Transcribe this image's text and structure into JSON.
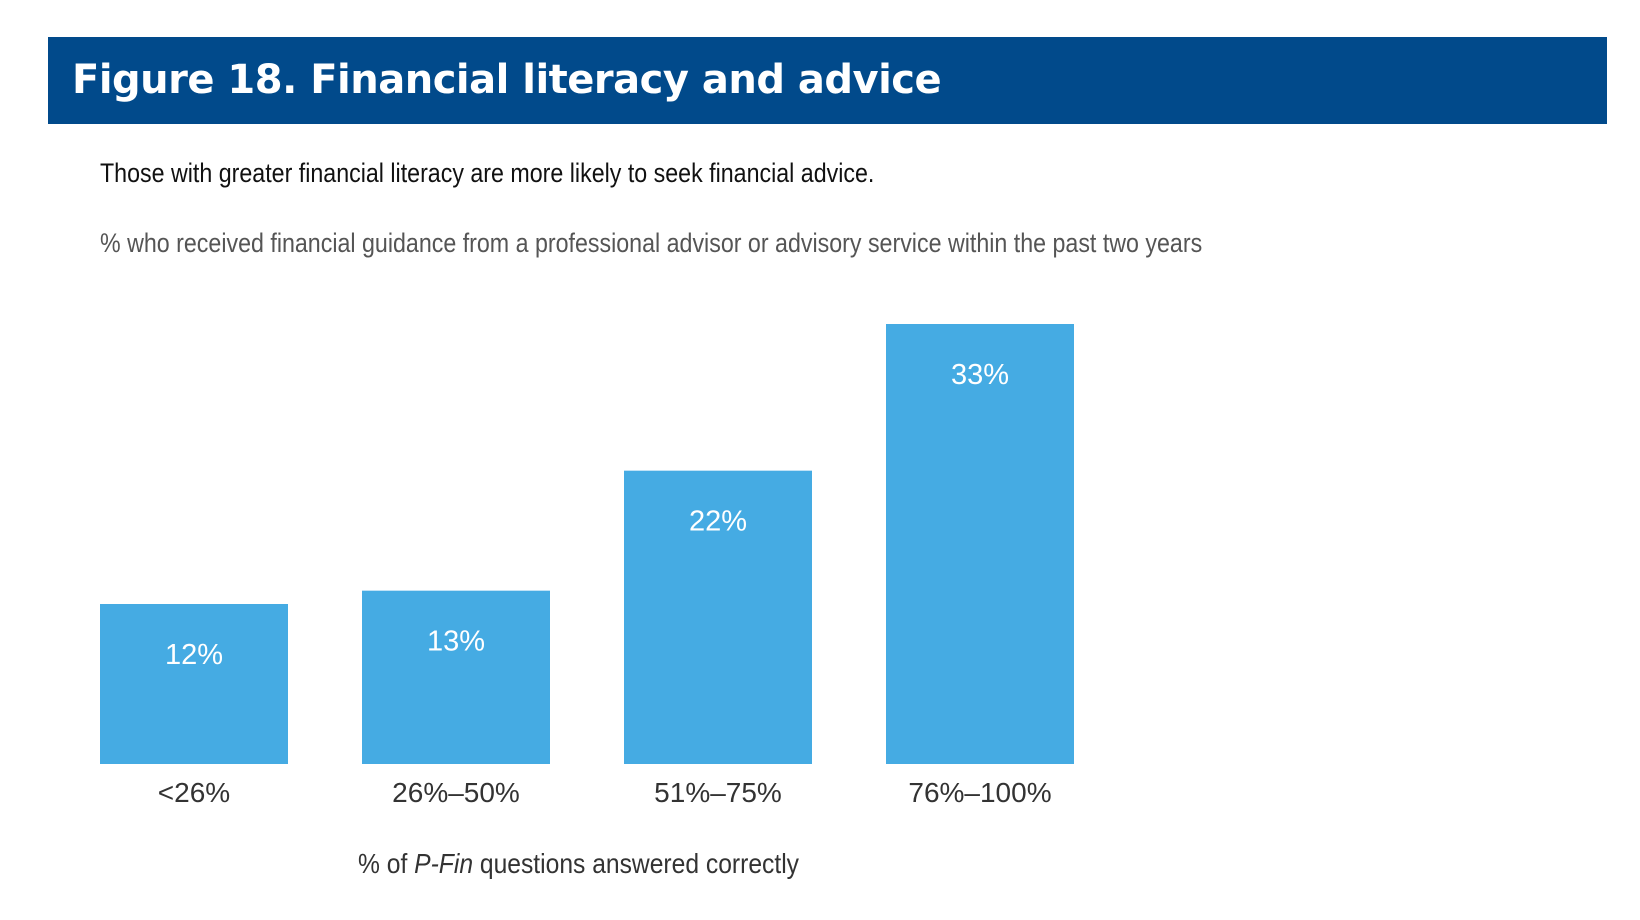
{
  "figure_title": "Figure 18. Financial literacy and advice",
  "subtitle": "Those with greater financial literacy are more likely to seek financial advice.",
  "description": "% who received financial guidance from a professional advisor or advisory service within the past two years",
  "colors": {
    "header_background": "#014a8b",
    "bar": "#45abe3"
  },
  "chart_data": {
    "type": "bar",
    "categories": [
      "<26%",
      "26%–50%",
      "51%–75%",
      "76%–100%"
    ],
    "values": [
      12,
      13,
      22,
      33
    ],
    "value_labels": [
      "12%",
      "13%",
      "22%",
      "33%"
    ],
    "xlabel": {
      "prefix": "% of ",
      "emphasis": "P-Fin",
      "suffix": " questions answered correctly"
    },
    "ylabel": "",
    "ylim": [
      0,
      33
    ],
    "grid": false,
    "legend": "none"
  }
}
